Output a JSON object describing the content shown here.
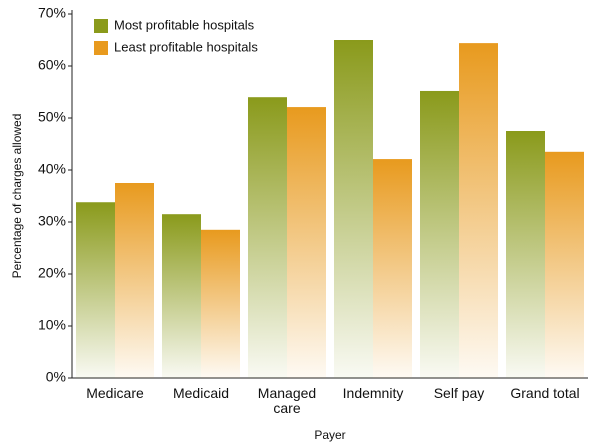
{
  "chart_data": {
    "type": "bar",
    "categories": [
      "Medicare",
      "Medicaid",
      "Managed care",
      "Indemnity",
      "Self pay",
      "Grand total"
    ],
    "series": [
      {
        "name": "Most profitable hospitals",
        "color": "#8a9a1b",
        "values": [
          33.8,
          31.5,
          54,
          65,
          55.2,
          47.5
        ]
      },
      {
        "name": "Least profitable hospitals",
        "color": "#e89a1e",
        "values": [
          37.5,
          28.5,
          52.1,
          42.1,
          64.4,
          43.5
        ]
      }
    ],
    "x_label": "Payer",
    "y_label": "Percentage of charges allowed",
    "ylim": [
      0,
      70
    ],
    "yticks": [
      {
        "value": 0,
        "label": "0%"
      },
      {
        "value": 10,
        "label": "10%"
      },
      {
        "value": 20,
        "label": "20%"
      },
      {
        "value": 30,
        "label": "30%"
      },
      {
        "value": 40,
        "label": "40%"
      },
      {
        "value": 50,
        "label": "50%"
      },
      {
        "value": 60,
        "label": "60%"
      },
      {
        "value": 70,
        "label": "70%"
      }
    ],
    "legend": "top-left",
    "grid": false
  }
}
